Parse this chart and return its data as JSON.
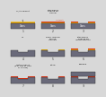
{
  "panels": [
    {
      "label": "1",
      "title": "Cr/Au deposit",
      "row": 0,
      "col": 0,
      "type": "flat_crau"
    },
    {
      "label": "2",
      "title": "Lithography\napplied for\nchannel",
      "row": 0,
      "col": 1,
      "type": "flat_crau_resist"
    },
    {
      "label": "3",
      "title": "",
      "row": 0,
      "col": 2,
      "type": "flat_crau_resist_gap"
    },
    {
      "label": "4",
      "title": "HF",
      "row": 1,
      "col": 0,
      "type": "etched_bare"
    },
    {
      "label": "5",
      "title": "Resin removal\netching\nchannels",
      "row": 1,
      "col": 1,
      "type": "etched_crau"
    },
    {
      "label": "6",
      "title": "Lithography\napplied for\ninstrumentation",
      "row": 1,
      "col": 2,
      "type": "etched_crau_resist"
    },
    {
      "label": "7",
      "title": "Metal deposit\n(e.g. TiPt or TiPd\nor TiAuNi)",
      "row": 2,
      "col": 0,
      "type": "etched_metal_all"
    },
    {
      "label": "8",
      "title": "Liftoff",
      "row": 2,
      "col": 1,
      "type": "etched_metal_sides"
    },
    {
      "label": "9",
      "title": "Bonding",
      "row": 2,
      "col": 2,
      "type": "bonded"
    }
  ],
  "bg_color": "#d8d8d8",
  "glass_color": "#6a6a7a",
  "resist_color": "#dd3311",
  "crau_color": "#c8960a",
  "crau_top_color": "#f0c030",
  "metal_color": "#cc2200",
  "text_color": "#111111",
  "panel_bg": "#ffffff",
  "panel_border": "#aaaaaa"
}
